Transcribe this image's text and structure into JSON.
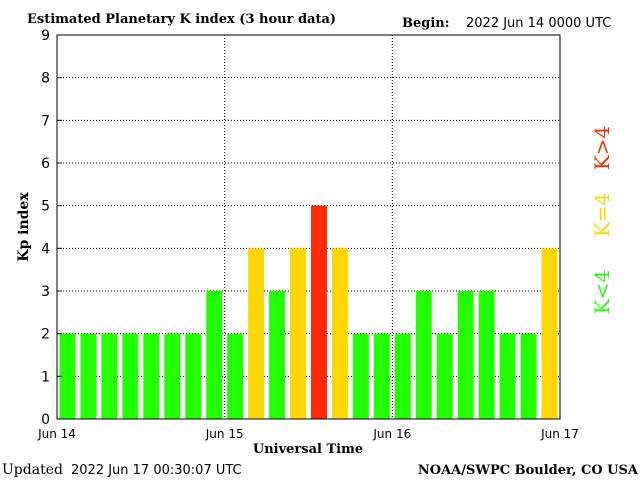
{
  "chart_data": {
    "type": "bar",
    "title": "Estimated Planetary K index (3 hour data)",
    "begin_label": "Begin:",
    "begin_value": "2022 Jun 14 0000 UTC",
    "xlabel": "Universal Time",
    "ylabel": "Kp index",
    "ylim": [
      0,
      9
    ],
    "yticks": [
      "0",
      "1",
      "2",
      "3",
      "4",
      "5",
      "6",
      "7",
      "8",
      "9"
    ],
    "xticks": [
      "Jun 14",
      "Jun 15",
      "Jun 16",
      "Jun 17"
    ],
    "intervals_per_day": 8,
    "values": [
      2,
      2,
      2,
      2,
      2,
      2,
      2,
      3,
      2,
      4,
      3,
      4,
      5,
      4,
      2,
      2,
      2,
      3,
      2,
      3,
      3,
      2,
      2,
      4
    ],
    "grid": true,
    "legend": [
      {
        "label": "K<4",
        "color": "#22ff00"
      },
      {
        "label": "K=4",
        "color": "#ffd700"
      },
      {
        "label": "K>4",
        "color": "#ff2a00"
      }
    ],
    "colors": {
      "low": "#22ff00",
      "mid": "#ffd700",
      "high": "#ff2a00"
    },
    "legend_placement": "right"
  },
  "footer": {
    "updated_label": "Updated",
    "updated_value": "2022 Jun 17 00:30:07 UTC",
    "source": "NOAA/SWPC Boulder, CO USA"
  }
}
